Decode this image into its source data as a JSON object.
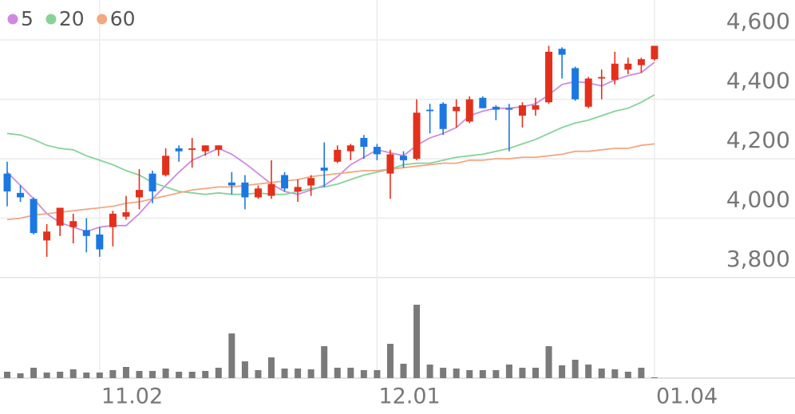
{
  "chart_data": {
    "type": "candlestick",
    "categories": [
      null,
      null,
      null,
      null,
      null,
      null,
      null,
      "11.02",
      null,
      null,
      null,
      null,
      null,
      null,
      null,
      null,
      null,
      null,
      null,
      null,
      null,
      null,
      null,
      null,
      null,
      null,
      null,
      null,
      "12.01",
      null,
      null,
      null,
      null,
      null,
      null,
      null,
      null,
      null,
      null,
      null,
      null,
      null,
      null,
      null,
      null,
      null,
      null,
      null,
      null,
      "01.04"
    ],
    "open": [
      4150,
      4085,
      4065,
      3925,
      3975,
      3970,
      3960,
      3945,
      3970,
      4005,
      4070,
      4150,
      4145,
      4235,
      4230,
      4225,
      4230,
      4120,
      4120,
      4070,
      4075,
      4145,
      4090,
      4110,
      4170,
      4190,
      4225,
      4270,
      4240,
      4150,
      4210,
      4200,
      4365,
      4385,
      4360,
      4325,
      4405,
      4375,
      4370,
      4345,
      4365,
      4390,
      4570,
      4505,
      4375,
      4470,
      4465,
      4500,
      4515,
      4535
    ],
    "high": [
      4190,
      4110,
      4070,
      3980,
      4035,
      4015,
      4000,
      3970,
      4025,
      4075,
      4165,
      4160,
      4235,
      4245,
      4270,
      4245,
      4245,
      4155,
      4145,
      4110,
      4195,
      4155,
      4130,
      4145,
      4255,
      4245,
      4250,
      4280,
      4250,
      4230,
      4225,
      4400,
      4385,
      4390,
      4400,
      4410,
      4410,
      4380,
      4385,
      4390,
      4405,
      4580,
      4575,
      4510,
      4475,
      4500,
      4560,
      4540,
      4540,
      4580
    ],
    "low": [
      4040,
      4055,
      3945,
      3870,
      3940,
      3915,
      3885,
      3870,
      3905,
      3995,
      4030,
      4050,
      4140,
      4190,
      4170,
      4210,
      4210,
      4080,
      4030,
      4065,
      4065,
      4090,
      4055,
      4075,
      4105,
      4185,
      4195,
      4200,
      4195,
      4065,
      4170,
      4195,
      4285,
      4280,
      4305,
      4320,
      4370,
      4330,
      4225,
      4305,
      4345,
      4385,
      4470,
      4395,
      4370,
      4400,
      4450,
      4485,
      4490,
      4530
    ],
    "close": [
      4090,
      4070,
      3950,
      3955,
      4035,
      3990,
      3940,
      3895,
      4015,
      4020,
      4095,
      4090,
      4210,
      4225,
      4235,
      4245,
      4245,
      4110,
      4070,
      4100,
      4115,
      4100,
      4105,
      4135,
      4160,
      4230,
      4245,
      4240,
      4215,
      4215,
      4195,
      4355,
      4360,
      4300,
      4375,
      4400,
      4370,
      4365,
      4365,
      4380,
      4380,
      4560,
      4550,
      4400,
      4470,
      4475,
      4520,
      4520,
      4535,
      4580
    ],
    "up_color": "#e3301c",
    "down_color": "#1b78e2",
    "series": [
      {
        "name": "5",
        "color": "#cf8ae0",
        "values": [
          4155,
          4110,
          4065,
          4015,
          3985,
          3970,
          3955,
          3970,
          3975,
          3975,
          4015,
          4065,
          4110,
          4155,
          4195,
          4215,
          4235,
          4215,
          4185,
          4150,
          4115,
          4090,
          4080,
          4095,
          4110,
          4140,
          4180,
          4205,
          4230,
          4220,
          4210,
          4245,
          4270,
          4285,
          4305,
          4345,
          4360,
          4370,
          4370,
          4375,
          4385,
          4415,
          4450,
          4460,
          4455,
          4445,
          4465,
          4480,
          4490,
          4525
        ]
      },
      {
        "name": "20",
        "color": "#86d39a",
        "values": [
          4285,
          4280,
          4265,
          4245,
          4235,
          4230,
          4210,
          4195,
          4180,
          4160,
          4145,
          4120,
          4105,
          4090,
          4085,
          4080,
          4085,
          4080,
          4080,
          4085,
          4080,
          4080,
          4090,
          4100,
          4105,
          4115,
          4130,
          4145,
          4155,
          4165,
          4180,
          4185,
          4185,
          4195,
          4205,
          4210,
          4215,
          4225,
          4235,
          4250,
          4265,
          4285,
          4305,
          4320,
          4330,
          4345,
          4360,
          4370,
          4390,
          4415
        ]
      },
      {
        "name": "60",
        "color": "#f2a882",
        "values": [
          3995,
          4000,
          4010,
          4015,
          4020,
          4025,
          4030,
          4035,
          4040,
          4050,
          4055,
          4065,
          4075,
          4085,
          4095,
          4100,
          4105,
          4105,
          4110,
          4115,
          4120,
          4125,
          4130,
          4140,
          4145,
          4150,
          4155,
          4160,
          4160,
          4165,
          4170,
          4175,
          4180,
          4185,
          4185,
          4195,
          4195,
          4200,
          4200,
          4205,
          4205,
          4210,
          4215,
          4225,
          4225,
          4230,
          4235,
          4235,
          4245,
          4250
        ]
      }
    ],
    "volume": {
      "color": "#7a7a7a",
      "ylim": [
        0,
        100
      ],
      "values": [
        8,
        6,
        13,
        7,
        8,
        11,
        7,
        7,
        10,
        14,
        9,
        9,
        12,
        8,
        8,
        9,
        13,
        56,
        21,
        10,
        26,
        12,
        12,
        11,
        40,
        13,
        13,
        10,
        10,
        43,
        18,
        92,
        17,
        13,
        12,
        10,
        10,
        10,
        17,
        13,
        13,
        40,
        16,
        23,
        17,
        12,
        11,
        8,
        13,
        1
      ]
    },
    "ylim": [
      3800,
      4600
    ],
    "yticks": [
      {
        "value": 4600,
        "label": "4,600"
      },
      {
        "value": 4400,
        "label": "4,400"
      },
      {
        "value": 4200,
        "label": "4,200"
      },
      {
        "value": 4000,
        "label": "4,000"
      },
      {
        "value": 3800,
        "label": "3,800"
      }
    ],
    "grid": true,
    "legend": "top-left"
  }
}
